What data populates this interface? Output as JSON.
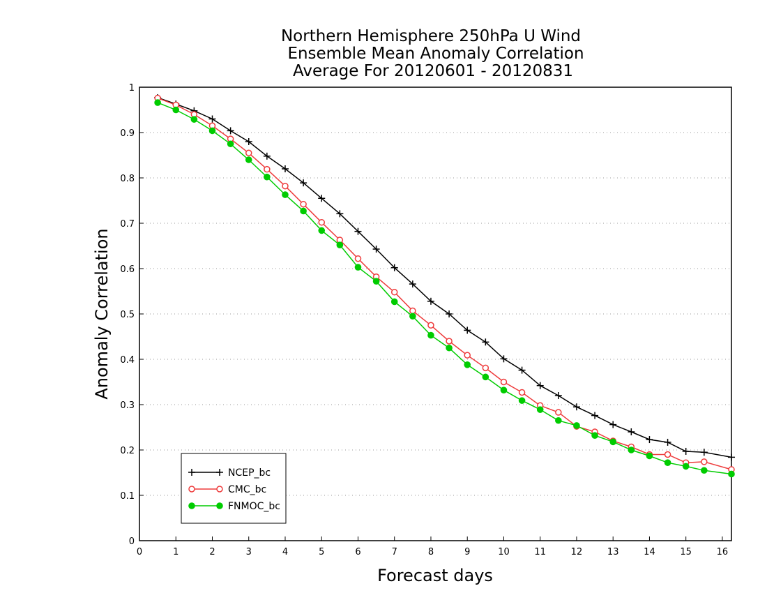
{
  "chart_data": {
    "type": "line",
    "title": [
      "Northern Hemisphere 250hPa U Wind",
      "Ensemble Mean Anomaly Correlation",
      "Average For 20120601 - 20120831"
    ],
    "xlabel": "Forecast days",
    "ylabel": "Anomaly Correlation",
    "xlim": [
      0,
      16.25
    ],
    "ylim": [
      0,
      1
    ],
    "x_ticks": [
      "0",
      "1",
      "2",
      "3",
      "4",
      "5",
      "6",
      "7",
      "8",
      "9",
      "10",
      "11",
      "12",
      "13",
      "14",
      "15",
      "16"
    ],
    "y_ticks": [
      "0",
      "0.1",
      "0.2",
      "0.3",
      "0.4",
      "0.5",
      "0.6",
      "0.7",
      "0.8",
      "0.9",
      "1"
    ],
    "grid": "horizontal dotted",
    "legend_position": "bottom-left",
    "x": [
      0.5,
      1,
      1.5,
      2,
      2.5,
      3,
      3.5,
      4,
      4.5,
      5,
      5.5,
      6,
      6.5,
      7,
      7.5,
      8,
      8.5,
      9,
      9.5,
      10,
      10.5,
      11,
      11.5,
      12,
      12.5,
      13,
      13.5,
      14,
      14.5,
      15,
      15.5,
      16.25
    ],
    "series": [
      {
        "name": "NCEP_bc",
        "color": "#000000",
        "marker": "plus",
        "values": [
          0.977,
          0.963,
          0.948,
          0.93,
          0.904,
          0.88,
          0.848,
          0.82,
          0.789,
          0.755,
          0.721,
          0.682,
          0.643,
          0.602,
          0.566,
          0.528,
          0.5,
          0.464,
          0.438,
          0.401,
          0.376,
          0.342,
          0.32,
          0.295,
          0.276,
          0.256,
          0.24,
          0.223,
          0.217,
          0.197,
          0.195,
          0.184
        ]
      },
      {
        "name": "CMC_bc",
        "color": "#ee3b3b",
        "marker": "open-circle",
        "values": [
          0.976,
          0.961,
          0.94,
          0.915,
          0.886,
          0.855,
          0.819,
          0.782,
          0.742,
          0.702,
          0.663,
          0.622,
          0.582,
          0.548,
          0.507,
          0.475,
          0.44,
          0.409,
          0.381,
          0.35,
          0.327,
          0.298,
          0.283,
          0.252,
          0.24,
          0.22,
          0.207,
          0.19,
          0.19,
          0.172,
          0.174,
          0.157
        ]
      },
      {
        "name": "FNMOC_bc",
        "color": "#00cc00",
        "marker": "filled-circle",
        "values": [
          0.966,
          0.95,
          0.929,
          0.904,
          0.875,
          0.84,
          0.802,
          0.763,
          0.727,
          0.684,
          0.652,
          0.603,
          0.572,
          0.527,
          0.495,
          0.453,
          0.425,
          0.388,
          0.361,
          0.332,
          0.309,
          0.289,
          0.265,
          0.254,
          0.232,
          0.218,
          0.2,
          0.187,
          0.172,
          0.164,
          0.155,
          0.147
        ]
      }
    ]
  }
}
